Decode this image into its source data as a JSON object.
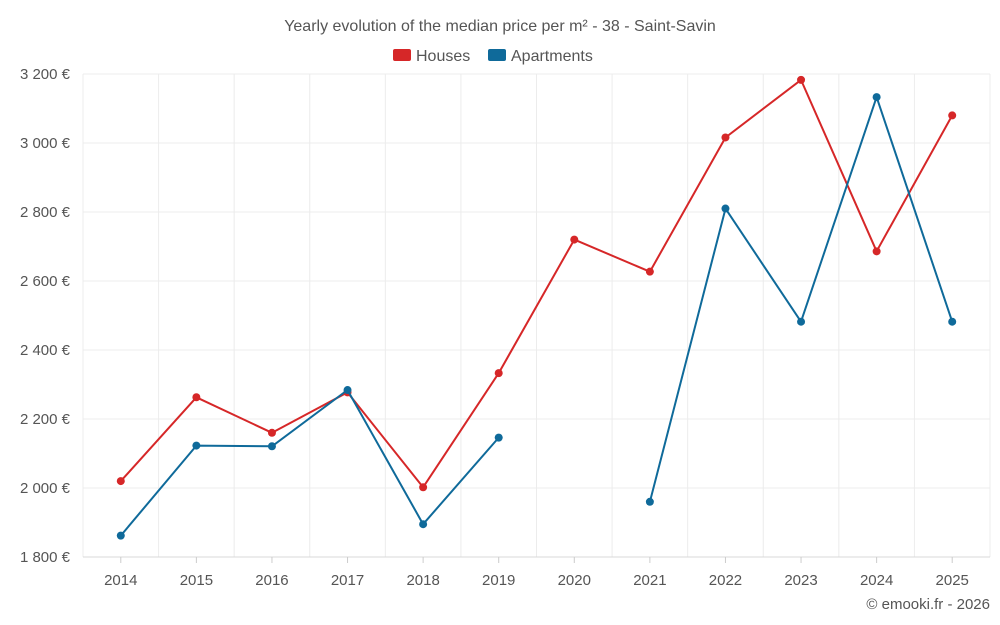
{
  "chart_data": {
    "type": "line",
    "title": "Yearly evolution of the median price per m² - 38 - Saint-Savin",
    "categories": [
      "2014",
      "2015",
      "2016",
      "2017",
      "2018",
      "2019",
      "2020",
      "2021",
      "2022",
      "2023",
      "2024",
      "2025"
    ],
    "ylim": [
      1800,
      3200
    ],
    "yticks": [
      1800,
      2000,
      2200,
      2400,
      2600,
      2800,
      3000,
      3200
    ],
    "ytick_labels": [
      "1 800 €",
      "2 000 €",
      "2 200 €",
      "2 400 €",
      "2 600 €",
      "2 800 €",
      "3 000 €",
      "3 200 €"
    ],
    "grid": true,
    "legend_position": "top-center",
    "series": [
      {
        "name": "Houses",
        "color": "#d62728",
        "values": [
          2020,
          2263,
          2160,
          2277,
          2002,
          2333,
          2720,
          2627,
          3016,
          3183,
          2686,
          3080
        ]
      },
      {
        "name": "Apartments",
        "color": "#0f6a9a",
        "values": [
          1862,
          2123,
          2121,
          2284,
          1895,
          2146,
          null,
          1960,
          2810,
          2482,
          3133,
          2482
        ]
      }
    ],
    "credit": "© emooki.fr - 2026"
  }
}
